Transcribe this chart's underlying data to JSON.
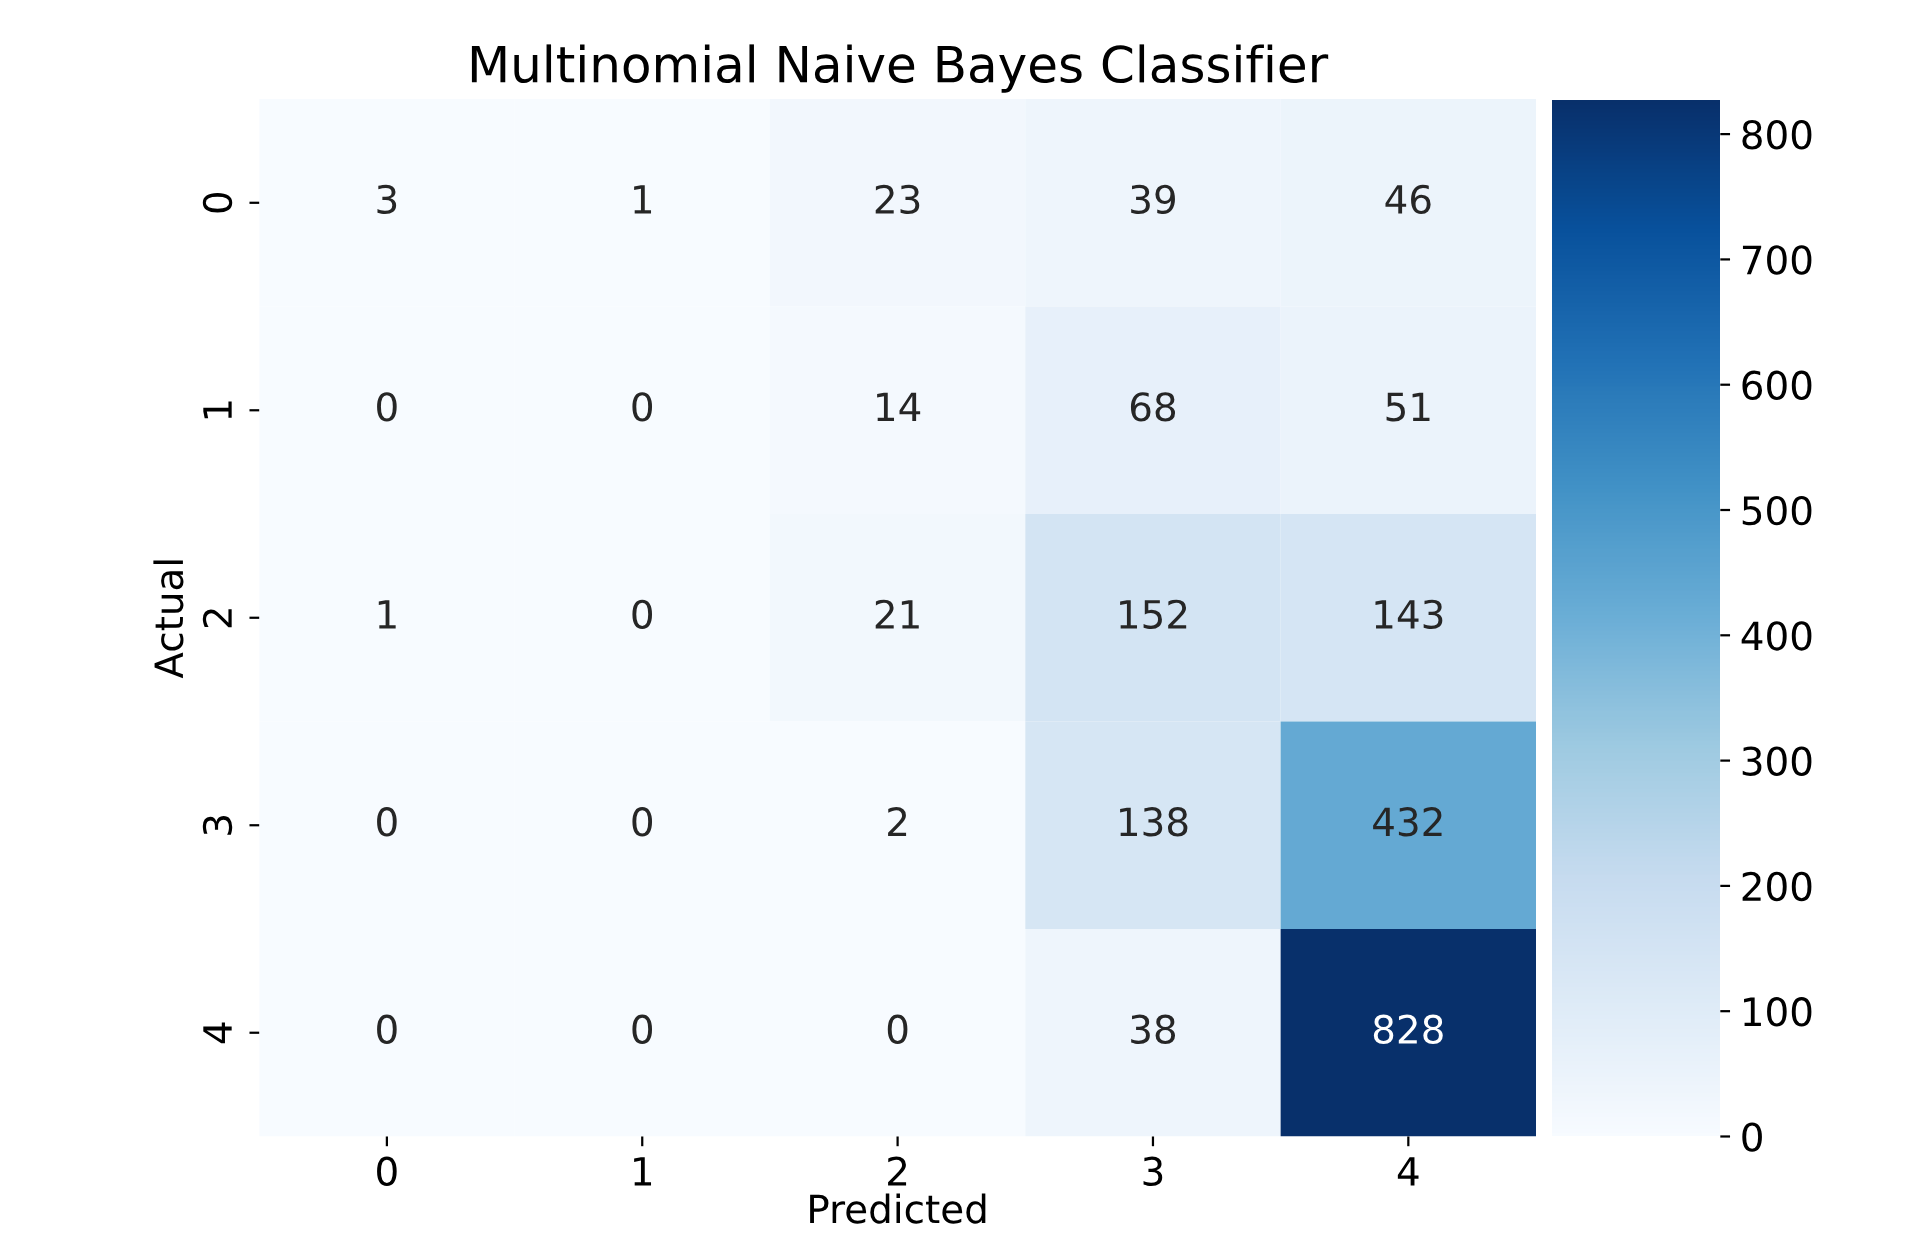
{
  "chart_data": {
    "type": "heatmap",
    "title": "Multinomial Naive Bayes Classifier",
    "xlabel": "Predicted",
    "ylabel": "Actual",
    "categories": [
      "0",
      "1",
      "2",
      "3",
      "4"
    ],
    "y_categories": [
      "0",
      "1",
      "2",
      "3",
      "4"
    ],
    "cells": [
      [
        3,
        1,
        23,
        39,
        46
      ],
      [
        0,
        0,
        14,
        68,
        51
      ],
      [
        1,
        0,
        21,
        152,
        143
      ],
      [
        0,
        0,
        2,
        138,
        432
      ],
      [
        0,
        0,
        0,
        38,
        828
      ]
    ],
    "clim": [
      0,
      828
    ],
    "cticks": [
      0,
      100,
      200,
      300,
      400,
      500,
      600,
      700,
      800
    ],
    "data_labels": true,
    "grid": false
  }
}
